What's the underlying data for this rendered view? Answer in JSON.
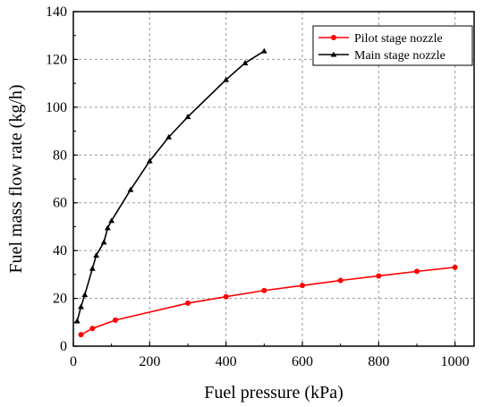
{
  "chart_data": {
    "type": "line",
    "xlabel": "Fuel pressure (kPa)",
    "ylabel": "Fuel mass flow rate (kg/h)",
    "xlim": [
      0,
      1050
    ],
    "ylim": [
      0,
      140
    ],
    "xticks": [
      0,
      200,
      400,
      600,
      800,
      1000
    ],
    "yticks": [
      0,
      20,
      40,
      60,
      80,
      100,
      120,
      140
    ],
    "grid": true,
    "legend_position": "top-right",
    "series": [
      {
        "name": "Pilot stage nozzle",
        "color": "#ff0000",
        "marker": "circle",
        "x": [
          20,
          50,
          110,
          300,
          400,
          500,
          600,
          700,
          800,
          900,
          1000
        ],
        "y": [
          4.8,
          7.4,
          10.9,
          18.0,
          20.7,
          23.3,
          25.4,
          27.5,
          29.4,
          31.3,
          33.0
        ]
      },
      {
        "name": "Main stage nozzle",
        "color": "#000000",
        "marker": "triangle",
        "x": [
          10,
          20,
          30,
          50,
          60,
          80,
          90,
          100,
          150,
          200,
          250,
          300,
          400,
          450,
          500
        ],
        "y": [
          10.5,
          16.5,
          21.5,
          32.5,
          38.0,
          43.5,
          49.5,
          52.5,
          65.5,
          77.5,
          87.5,
          96.0,
          111.5,
          118.5,
          123.5
        ]
      }
    ]
  }
}
